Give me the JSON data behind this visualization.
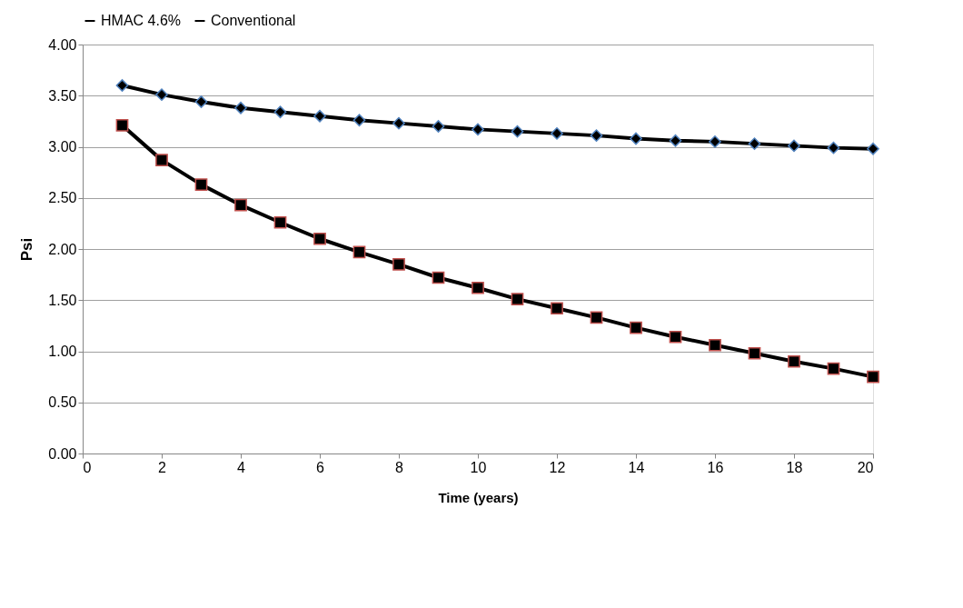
{
  "chart_data": {
    "type": "line",
    "xlabel": "Time (years)",
    "ylabel": "Psi",
    "x": [
      1,
      2,
      3,
      4,
      5,
      6,
      7,
      8,
      9,
      10,
      11,
      12,
      13,
      14,
      15,
      16,
      17,
      18,
      19,
      20
    ],
    "series": [
      {
        "name": "HMAC 4.6%",
        "color": "#000000",
        "marker": "diamond",
        "values": [
          3.6,
          3.51,
          3.44,
          3.38,
          3.34,
          3.3,
          3.26,
          3.23,
          3.2,
          3.17,
          3.15,
          3.13,
          3.11,
          3.08,
          3.06,
          3.05,
          3.03,
          3.01,
          2.99,
          2.98
        ]
      },
      {
        "name": "Conventional",
        "color": "#000000",
        "marker": "square",
        "values": [
          3.21,
          2.87,
          2.63,
          2.43,
          2.26,
          2.1,
          1.97,
          1.85,
          1.72,
          1.62,
          1.51,
          1.42,
          1.33,
          1.23,
          1.14,
          1.06,
          0.98,
          0.9,
          0.83,
          0.75
        ]
      }
    ],
    "xlim": [
      0,
      20
    ],
    "xticks": [
      0,
      2,
      4,
      6,
      8,
      10,
      12,
      14,
      16,
      18,
      20
    ],
    "ylim": [
      0,
      4
    ],
    "yticks": [
      {
        "value": 0,
        "label": "0.00"
      },
      {
        "value": 0.5,
        "label": "0.50"
      },
      {
        "value": 1,
        "label": "1.00"
      },
      {
        "value": 1.5,
        "label": "1.50"
      },
      {
        "value": 2,
        "label": "2.00"
      },
      {
        "value": 2.5,
        "label": "2.50"
      },
      {
        "value": 3,
        "label": "3.00"
      },
      {
        "value": 3.5,
        "label": "3.50"
      },
      {
        "value": 4,
        "label": "4.00"
      }
    ],
    "grid": "y",
    "legend": "top",
    "line_style": "solid"
  }
}
